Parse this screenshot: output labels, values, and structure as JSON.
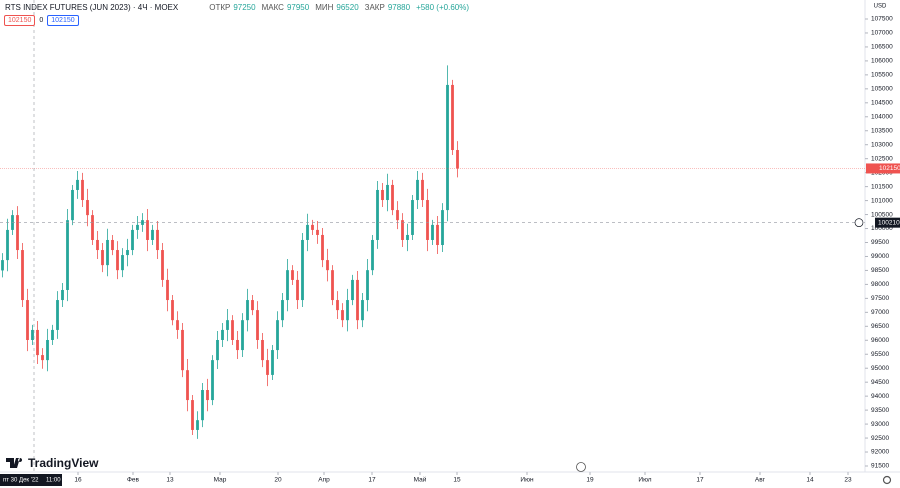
{
  "chart_data": {
    "type": "candlestick",
    "title": "RTS INDEX FUTURES (JUN 2023) · 4Ч · MOEX",
    "ohlc_legend": [
      {
        "label": "ОТКР",
        "value": 97250
      },
      {
        "label": "МАКС",
        "value": 97950
      },
      {
        "label": "МИН",
        "value": 96520
      },
      {
        "label": "ЗАКР",
        "value": 97880
      }
    ],
    "change": "+580 (+0.60%)",
    "sell_price": 102150,
    "quantity": 0,
    "buy_price": 102150,
    "currency": "USD",
    "last_price": 102150,
    "crosshair_price": 100210,
    "crosshair_time": "пт 30 Дек '22",
    "crosshair_clock": "11:00",
    "brand": "TradingView",
    "up_color": "#26a69a",
    "down_color": "#ef5350",
    "open": [
      98500,
      98870,
      99950,
      100480,
      99230,
      97440,
      96010,
      96370,
      95470,
      95290,
      96010,
      96370,
      97440,
      97800,
      100300,
      101380,
      101740,
      101020,
      100480,
      99590,
      99230,
      98690,
      99590,
      99230,
      98510,
      99050,
      99230,
      99950,
      100130,
      100300,
      99590,
      99950,
      99230,
      98160,
      97440,
      96720,
      96370,
      94930,
      93860,
      92790,
      93140,
      94220,
      93860,
      95290,
      96010,
      96370,
      96720,
      96010,
      95650,
      96720,
      97440,
      97080,
      96010,
      95290,
      94760,
      95650,
      96720,
      97440,
      98510,
      98160,
      97440,
      99590,
      100130,
      99950,
      99770,
      98870,
      98510,
      97440,
      97080,
      96720,
      97440,
      98160,
      96720,
      97440,
      98510,
      99590,
      101380,
      101020,
      101560,
      100660,
      100300,
      99590,
      99770,
      101020,
      101740,
      101020,
      99590,
      100130,
      99410,
      100660,
      105140,
      102810
    ],
    "high": [
      99120,
      100350,
      100660,
      100800,
      99480,
      97840,
      96550,
      96690,
      95720,
      96410,
      96550,
      97760,
      98050,
      100700,
      101560,
      102060,
      101990,
      101420,
      100660,
      99910,
      99480,
      99990,
      99770,
      99550,
      99300,
      99630,
      100130,
      100450,
      100550,
      100700,
      100130,
      100270,
      99480,
      98560,
      97620,
      97040,
      96620,
      95330,
      94040,
      93460,
      94470,
      94620,
      95470,
      96330,
      96620,
      97120,
      96900,
      96330,
      96970,
      97840,
      97620,
      97400,
      96260,
      95690,
      95830,
      97040,
      97690,
      98910,
      98690,
      98480,
      99840,
      100530,
      100310,
      100270,
      100020,
      99270,
      98690,
      97760,
      97330,
      97840,
      98340,
      98480,
      97690,
      98910,
      99770,
      101700,
      101630,
      101960,
      101740,
      100980,
      100550,
      100170,
      101200,
      102060,
      101990,
      101420,
      100310,
      100450,
      100910,
      105840,
      105320,
      103130
    ],
    "low": [
      98250,
      98470,
      99770,
      98910,
      97190,
      95610,
      95830,
      95150,
      94980,
      94890,
      95830,
      96050,
      97190,
      97400,
      100120,
      101060,
      100770,
      100080,
      99410,
      98910,
      98440,
      98290,
      99050,
      98190,
      98260,
      98650,
      99050,
      99630,
      99880,
      99190,
      99410,
      98910,
      97910,
      97040,
      96540,
      96050,
      94680,
      93460,
      92610,
      92470,
      92890,
      93460,
      93680,
      94970,
      95760,
      95970,
      95830,
      95330,
      95400,
      96320,
      96900,
      95690,
      95040,
      94360,
      94580,
      95330,
      96470,
      97040,
      97980,
      97120,
      97190,
      99190,
      99770,
      99450,
      98620,
      98110,
      97260,
      96760,
      96470,
      96320,
      97260,
      96400,
      96470,
      97040,
      98330,
      99270,
      100770,
      100620,
      100480,
      99980,
      99340,
      99190,
      99590,
      100700,
      100770,
      99190,
      99410,
      99090,
      99160,
      100260,
      102630,
      101830
    ],
    "close": [
      98870,
      99950,
      100480,
      99230,
      97440,
      96010,
      96370,
      95470,
      95290,
      96010,
      96370,
      97440,
      97800,
      100300,
      101380,
      101740,
      101020,
      100480,
      99590,
      99230,
      98690,
      99590,
      99230,
      98510,
      99050,
      99230,
      99950,
      100130,
      100300,
      99590,
      99950,
      99230,
      98160,
      97440,
      96720,
      96370,
      94930,
      93860,
      92790,
      93140,
      94220,
      93860,
      95290,
      96010,
      96370,
      96720,
      96010,
      95650,
      96720,
      97440,
      97080,
      96010,
      95290,
      94760,
      95650,
      96720,
      97440,
      98510,
      98160,
      97440,
      99590,
      100130,
      99950,
      99770,
      98870,
      98510,
      97440,
      97080,
      96720,
      97440,
      98160,
      96720,
      97440,
      98510,
      99590,
      101380,
      101020,
      101560,
      100660,
      100300,
      99590,
      99770,
      101020,
      101740,
      101020,
      99590,
      100130,
      99410,
      100660,
      105140,
      102810,
      102150
    ],
    "xlim": [
      0,
      173
    ],
    "xticks": [
      {
        "value": 15.6,
        "label": "16"
      },
      {
        "value": 26.6,
        "label": "Фев"
      },
      {
        "value": 34,
        "label": "13"
      },
      {
        "value": 44,
        "label": "Мар"
      },
      {
        "value": 55.6,
        "label": "20"
      },
      {
        "value": 64.8,
        "label": "Апр"
      },
      {
        "value": 74.4,
        "label": "17"
      },
      {
        "value": 84,
        "label": "Май"
      },
      {
        "value": 91.4,
        "label": "15"
      },
      {
        "value": 105.4,
        "label": "Июн"
      },
      {
        "value": 118,
        "label": "19"
      },
      {
        "value": 129,
        "label": "Июл"
      },
      {
        "value": 140,
        "label": "17"
      },
      {
        "value": 152,
        "label": "Авг"
      },
      {
        "value": 162,
        "label": "14"
      },
      {
        "value": 169.6,
        "label": "23"
      }
    ],
    "ylim": [
      91285,
      108180
    ],
    "yticks": [
      91500,
      92000,
      92500,
      93000,
      93500,
      94000,
      94500,
      95000,
      95500,
      96000,
      96500,
      97000,
      97500,
      98000,
      98500,
      99000,
      99500,
      100000,
      100500,
      101000,
      101500,
      102000,
      102500,
      103000,
      103500,
      104000,
      104500,
      105000,
      105500,
      106000,
      106500,
      107000,
      107500
    ]
  }
}
